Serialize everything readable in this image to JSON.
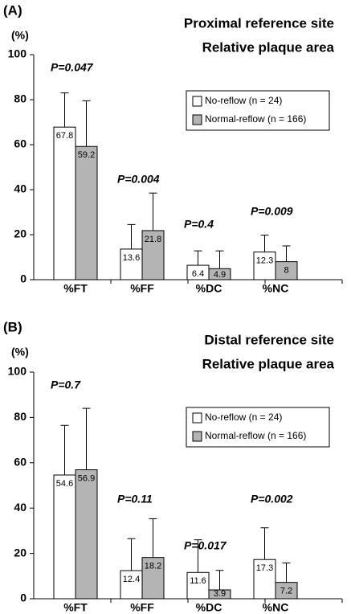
{
  "chart_data": [
    {
      "type": "bar",
      "panel_label": "(A)",
      "title": [
        "Proximal reference site",
        "Relative plaque area"
      ],
      "y_label": "(%)",
      "categories": [
        "%FT",
        "%FF",
        "%DC",
        "%NC"
      ],
      "series": [
        {
          "name": "No-reflow (n = 24)",
          "color": "#ffffff",
          "values": [
            67.8,
            13.6,
            6.4,
            12.3
          ],
          "errors": [
            15.2,
            10.9,
            6.4,
            7.5
          ]
        },
        {
          "name": "Normal-reflow (n = 166)",
          "color": "#b4b4b4",
          "values": [
            59.2,
            21.8,
            4.9,
            8
          ],
          "errors": [
            20.3,
            16.7,
            7.9,
            7
          ]
        }
      ],
      "annotations": [
        "P=0.047",
        "P=0.004",
        "P=0.4",
        "P=0.009"
      ],
      "ylim": [
        0,
        100
      ],
      "yticks": [
        0,
        20,
        40,
        60,
        80,
        100
      ]
    },
    {
      "type": "bar",
      "panel_label": "(B)",
      "title": [
        "Distal reference site",
        "Relative plaque area"
      ],
      "y_label": "(%)",
      "categories": [
        "%FT",
        "%FF",
        "%DC",
        "%NC"
      ],
      "series": [
        {
          "name": "No-reflow (n = 24)",
          "color": "#ffffff",
          "values": [
            54.6,
            12.4,
            11.6,
            17.3
          ],
          "errors": [
            21.9,
            14.1,
            14.4,
            14
          ]
        },
        {
          "name": "Normal-reflow (n = 166)",
          "color": "#b4b4b4",
          "values": [
            56.9,
            18.2,
            3.9,
            7.2
          ],
          "errors": [
            27.1,
            17.1,
            8.6,
            8.6
          ]
        }
      ],
      "annotations": [
        "P=0.7",
        "P=0.11",
        "P=0.017",
        "P=0.002"
      ],
      "ylim": [
        0,
        100
      ],
      "yticks": [
        0,
        20,
        40,
        60,
        80,
        100
      ]
    }
  ]
}
